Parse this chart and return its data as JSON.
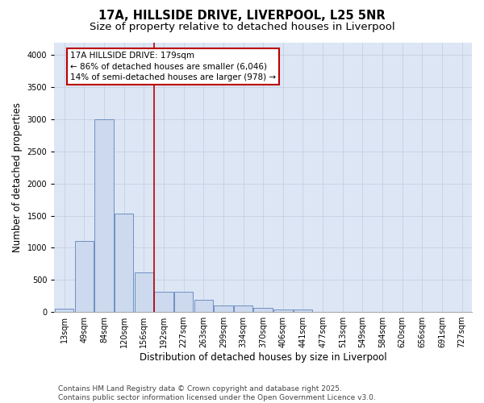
{
  "title_line1": "17A, HILLSIDE DRIVE, LIVERPOOL, L25 5NR",
  "title_line2": "Size of property relative to detached houses in Liverpool",
  "xlabel": "Distribution of detached houses by size in Liverpool",
  "ylabel": "Number of detached properties",
  "categories": [
    "13sqm",
    "49sqm",
    "84sqm",
    "120sqm",
    "156sqm",
    "192sqm",
    "227sqm",
    "263sqm",
    "299sqm",
    "334sqm",
    "370sqm",
    "406sqm",
    "441sqm",
    "477sqm",
    "513sqm",
    "549sqm",
    "584sqm",
    "620sqm",
    "656sqm",
    "691sqm",
    "727sqm"
  ],
  "values": [
    55,
    1100,
    3000,
    1530,
    620,
    310,
    315,
    190,
    105,
    100,
    65,
    35,
    35,
    5,
    2,
    2,
    2,
    2,
    2,
    2,
    2
  ],
  "bar_color": "#ccd9ee",
  "bar_edge_color": "#7090c0",
  "grid_color": "#c8d0e0",
  "background_color": "#dce6f5",
  "vline_x": 5.0,
  "vline_color": "#bb0000",
  "annotation_text": "17A HILLSIDE DRIVE: 179sqm\n← 86% of detached houses are smaller (6,046)\n14% of semi-detached houses are larger (978) →",
  "annotation_box_color": "#bb0000",
  "footer_line1": "Contains HM Land Registry data © Crown copyright and database right 2025.",
  "footer_line2": "Contains public sector information licensed under the Open Government Licence v3.0.",
  "ylim": [
    0,
    4200
  ],
  "title_fontsize": 10.5,
  "subtitle_fontsize": 9.5,
  "axis_label_fontsize": 8.5,
  "tick_fontsize": 7,
  "annotation_fontsize": 7.5,
  "footer_fontsize": 6.5
}
